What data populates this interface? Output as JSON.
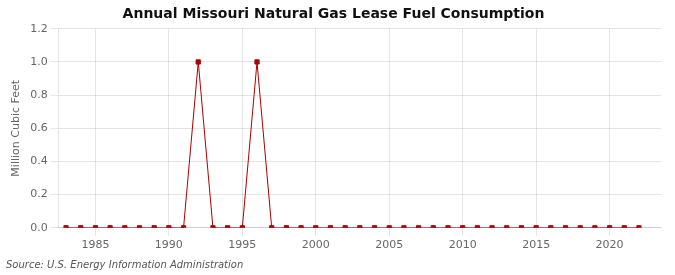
{
  "chart_data": {
    "type": "line",
    "title": "Annual Missouri Natural Gas Lease Fuel Consumption",
    "y_label": "Million Cubic Feet",
    "annotations": [
      "Source: U.S. Energy Information Administration"
    ],
    "x": [
      1983,
      1984,
      1985,
      1986,
      1987,
      1988,
      1989,
      1990,
      1991,
      1992,
      1993,
      1994,
      1995,
      1996,
      1997,
      1998,
      1999,
      2000,
      2001,
      2002,
      2003,
      2004,
      2005,
      2006,
      2007,
      2008,
      2009,
      2010,
      2011,
      2012,
      2013,
      2014,
      2015,
      2016,
      2017,
      2018,
      2019,
      2020,
      2021,
      2022
    ],
    "values": [
      0.0,
      0.0,
      0.0,
      0.0,
      0.0,
      0.0,
      0.0,
      0.0,
      0.0,
      1.0,
      0.0,
      0.0,
      0.0,
      1.0,
      0.0,
      0.0,
      0.0,
      0.0,
      0.0,
      0.0,
      0.0,
      0.0,
      0.0,
      0.0,
      0.0,
      0.0,
      0.0,
      0.0,
      0.0,
      0.0,
      0.0,
      0.0,
      0.0,
      0.0,
      0.0,
      0.0,
      0.0,
      0.0,
      0.0,
      0.0
    ],
    "color": "#AA0000",
    "marker": "square",
    "line_style": "solid",
    "xlim": [
      1982.5,
      2023.5
    ],
    "ylim": [
      0.0,
      1.2
    ],
    "xticks": [
      1985,
      1990,
      1995,
      2000,
      2005,
      2010,
      2015,
      2020
    ],
    "yticks": [
      {
        "value": 0.0,
        "label": "0.0"
      },
      0.2,
      0.4,
      0.6,
      0.8,
      {
        "value": 1.0,
        "label": "1.0"
      },
      1.2
    ],
    "grid": true
  }
}
